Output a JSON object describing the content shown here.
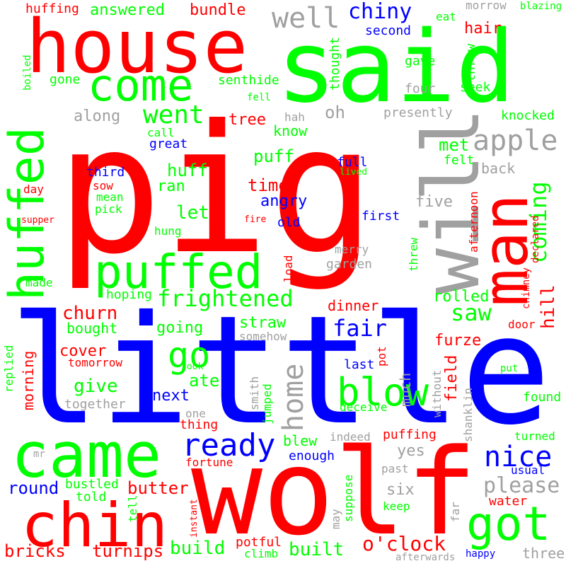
{
  "colors": {
    "red": "#ff0000",
    "green": "#00ff00",
    "blue": "#0000ff",
    "gray": "#a0a0a0",
    "background": "#ffffff"
  },
  "words": [
    {
      "text": "pig",
      "color": "red",
      "vertical": false
    },
    {
      "text": "little",
      "color": "blue",
      "vertical": false
    },
    {
      "text": "wolf",
      "color": "red",
      "vertical": false
    },
    {
      "text": "said",
      "color": "green",
      "vertical": false
    },
    {
      "text": "house",
      "color": "red",
      "vertical": false
    },
    {
      "text": "will",
      "color": "gray",
      "vertical": true
    },
    {
      "text": "man",
      "color": "red",
      "vertical": true
    },
    {
      "text": "came",
      "color": "green",
      "vertical": false
    },
    {
      "text": "chin",
      "color": "red",
      "vertical": false
    },
    {
      "text": "huffed",
      "color": "green",
      "vertical": true
    },
    {
      "text": "puffed",
      "color": "green",
      "vertical": false
    },
    {
      "text": "got",
      "color": "green",
      "vertical": false
    },
    {
      "text": "come",
      "color": "green",
      "vertical": false
    },
    {
      "text": "blow",
      "color": "green",
      "vertical": false
    },
    {
      "text": "go",
      "color": "green",
      "vertical": false
    },
    {
      "text": "home",
      "color": "gray",
      "vertical": true
    },
    {
      "text": "ready",
      "color": "blue",
      "vertical": false
    },
    {
      "text": "nice",
      "color": "blue",
      "vertical": false
    },
    {
      "text": "well",
      "color": "gray",
      "vertical": false
    },
    {
      "text": "apple",
      "color": "gray",
      "vertical": false
    },
    {
      "text": "went",
      "color": "green",
      "vertical": false
    },
    {
      "text": "frightened",
      "color": "green",
      "vertical": false
    },
    {
      "text": "coming",
      "color": "green",
      "vertical": true
    },
    {
      "text": "fair",
      "color": "blue",
      "vertical": false
    },
    {
      "text": "saw",
      "color": "green",
      "vertical": false
    },
    {
      "text": "please",
      "color": "gray",
      "vertical": false
    },
    {
      "text": "o'clock",
      "color": "red",
      "vertical": false
    },
    {
      "text": "chiny",
      "color": "blue",
      "vertical": false
    },
    {
      "text": "hill",
      "color": "red",
      "vertical": true
    },
    {
      "text": "build",
      "color": "green",
      "vertical": false
    },
    {
      "text": "built",
      "color": "green",
      "vertical": false
    },
    {
      "text": "bricks",
      "color": "red",
      "vertical": false
    },
    {
      "text": "turnips",
      "color": "red",
      "vertical": false
    },
    {
      "text": "butter",
      "color": "red",
      "vertical": false
    },
    {
      "text": "give",
      "color": "green",
      "vertical": false
    },
    {
      "text": "churn",
      "color": "red",
      "vertical": false
    },
    {
      "text": "round",
      "color": "blue",
      "vertical": false
    },
    {
      "text": "answered",
      "color": "green",
      "vertical": false
    },
    {
      "text": "bundle",
      "color": "red",
      "vertical": false
    },
    {
      "text": "huffing",
      "color": "red",
      "vertical": false
    },
    {
      "text": "hair",
      "color": "red",
      "vertical": false
    },
    {
      "text": "second",
      "color": "blue",
      "vertical": false
    },
    {
      "text": "eat",
      "color": "green",
      "vertical": false
    },
    {
      "text": "morrow",
      "color": "gray",
      "vertical": false
    },
    {
      "text": "blazing",
      "color": "green",
      "vertical": false
    },
    {
      "text": "gave",
      "color": "green",
      "vertical": false
    },
    {
      "text": "throw",
      "color": "green",
      "vertical": true
    },
    {
      "text": "seek",
      "color": "green",
      "vertical": false
    },
    {
      "text": "four",
      "color": "gray",
      "vertical": false
    },
    {
      "text": "boiled",
      "color": "green",
      "vertical": true
    },
    {
      "text": "gone",
      "color": "green",
      "vertical": false
    },
    {
      "text": "senthide",
      "color": "green",
      "vertical": false
    },
    {
      "text": "fell",
      "color": "green",
      "vertical": false
    },
    {
      "text": "thought",
      "color": "green",
      "vertical": true
    },
    {
      "text": "along",
      "color": "gray",
      "vertical": false
    },
    {
      "text": "oh",
      "color": "gray",
      "vertical": false
    },
    {
      "text": "tree",
      "color": "red",
      "vertical": false
    },
    {
      "text": "hah",
      "color": "gray",
      "vertical": false
    },
    {
      "text": "presently",
      "color": "gray",
      "vertical": false
    },
    {
      "text": "knocked",
      "color": "green",
      "vertical": false
    },
    {
      "text": "know",
      "color": "green",
      "vertical": false
    },
    {
      "text": "call",
      "color": "green",
      "vertical": false
    },
    {
      "text": "great",
      "color": "blue",
      "vertical": false
    },
    {
      "text": "puff",
      "color": "green",
      "vertical": false
    },
    {
      "text": "met",
      "color": "green",
      "vertical": false
    },
    {
      "text": "felt",
      "color": "green",
      "vertical": false
    },
    {
      "text": "back",
      "color": "gray",
      "vertical": false
    },
    {
      "text": "third",
      "color": "blue",
      "vertical": false
    },
    {
      "text": "huff",
      "color": "green",
      "vertical": false
    },
    {
      "text": "full",
      "color": "blue",
      "vertical": false
    },
    {
      "text": "lived",
      "color": "green",
      "vertical": false
    },
    {
      "text": "sow",
      "color": "red",
      "vertical": false
    },
    {
      "text": "mean",
      "color": "green",
      "vertical": false
    },
    {
      "text": "ran",
      "color": "green",
      "vertical": false
    },
    {
      "text": "time",
      "color": "red",
      "vertical": false
    },
    {
      "text": "day",
      "color": "red",
      "vertical": false
    },
    {
      "text": "pick",
      "color": "green",
      "vertical": false
    },
    {
      "text": "five",
      "color": "gray",
      "vertical": false
    },
    {
      "text": "angry",
      "color": "blue",
      "vertical": false
    },
    {
      "text": "let",
      "color": "green",
      "vertical": false
    },
    {
      "text": "first",
      "color": "blue",
      "vertical": false
    },
    {
      "text": "supper",
      "color": "red",
      "vertical": false
    },
    {
      "text": "fire",
      "color": "red",
      "vertical": false
    },
    {
      "text": "old",
      "color": "blue",
      "vertical": false
    },
    {
      "text": "hung",
      "color": "green",
      "vertical": false
    },
    {
      "text": "afternoon",
      "color": "red",
      "vertical": true
    },
    {
      "text": "declared",
      "color": "red",
      "vertical": true
    },
    {
      "text": "threw",
      "color": "green",
      "vertical": true
    },
    {
      "text": "chimney",
      "color": "red",
      "vertical": true
    },
    {
      "text": "merry",
      "color": "gray",
      "vertical": false
    },
    {
      "text": "garden",
      "color": "gray",
      "vertical": false
    },
    {
      "text": "load",
      "color": "red",
      "vertical": true
    },
    {
      "text": "made",
      "color": "green",
      "vertical": false
    },
    {
      "text": "hoping",
      "color": "green",
      "vertical": false
    },
    {
      "text": "rolled",
      "color": "green",
      "vertical": false
    },
    {
      "text": "dinner",
      "color": "red",
      "vertical": false
    },
    {
      "text": "bought",
      "color": "green",
      "vertical": false
    },
    {
      "text": "going",
      "color": "green",
      "vertical": false
    },
    {
      "text": "straw",
      "color": "green",
      "vertical": false
    },
    {
      "text": "somehow",
      "color": "gray",
      "vertical": false
    },
    {
      "text": "much",
      "color": "gray",
      "vertical": true
    },
    {
      "text": "furze",
      "color": "red",
      "vertical": false
    },
    {
      "text": "door",
      "color": "red",
      "vertical": false
    },
    {
      "text": "replied",
      "color": "green",
      "vertical": true
    },
    {
      "text": "cover",
      "color": "red",
      "vertical": false
    },
    {
      "text": "tomorrow",
      "color": "red",
      "vertical": false
    },
    {
      "text": "took",
      "color": "green",
      "vertical": false
    },
    {
      "text": "pot",
      "color": "red",
      "vertical": true
    },
    {
      "text": "last",
      "color": "blue",
      "vertical": false
    },
    {
      "text": "field",
      "color": "red",
      "vertical": true
    },
    {
      "text": "put",
      "color": "green",
      "vertical": false
    },
    {
      "text": "morning",
      "color": "red",
      "vertical": true
    },
    {
      "text": "next",
      "color": "blue",
      "vertical": false
    },
    {
      "text": "ate",
      "color": "green",
      "vertical": false
    },
    {
      "text": "smith",
      "color": "gray",
      "vertical": true
    },
    {
      "text": "jumped",
      "color": "green",
      "vertical": true
    },
    {
      "text": "without",
      "color": "gray",
      "vertical": true
    },
    {
      "text": "found",
      "color": "green",
      "vertical": false
    },
    {
      "text": "together",
      "color": "gray",
      "vertical": false
    },
    {
      "text": "deceive",
      "color": "green",
      "vertical": false
    },
    {
      "text": "shanklin",
      "color": "gray",
      "vertical": true
    },
    {
      "text": "one",
      "color": "gray",
      "vertical": false
    },
    {
      "text": "thing",
      "color": "red",
      "vertical": false
    },
    {
      "text": "blew",
      "color": "green",
      "vertical": false
    },
    {
      "text": "indeed",
      "color": "gray",
      "vertical": false
    },
    {
      "text": "puffing",
      "color": "red",
      "vertical": false
    },
    {
      "text": "turned",
      "color": "green",
      "vertical": false
    },
    {
      "text": "mr",
      "color": "gray",
      "vertical": false
    },
    {
      "text": "enough",
      "color": "blue",
      "vertical": false
    },
    {
      "text": "yes",
      "color": "gray",
      "vertical": false
    },
    {
      "text": "fortune",
      "color": "red",
      "vertical": false
    },
    {
      "text": "usual",
      "color": "blue",
      "vertical": false
    },
    {
      "text": "past",
      "color": "gray",
      "vertical": false
    },
    {
      "text": "bustled",
      "color": "green",
      "vertical": false
    },
    {
      "text": "told",
      "color": "green",
      "vertical": false
    },
    {
      "text": "six",
      "color": "gray",
      "vertical": false
    },
    {
      "text": "suppose",
      "color": "green",
      "vertical": true
    },
    {
      "text": "water",
      "color": "red",
      "vertical": false
    },
    {
      "text": "keep",
      "color": "green",
      "vertical": false
    },
    {
      "text": "far",
      "color": "gray",
      "vertical": true
    },
    {
      "text": "tell",
      "color": "green",
      "vertical": true
    },
    {
      "text": "instant",
      "color": "red",
      "vertical": true
    },
    {
      "text": "may",
      "color": "gray",
      "vertical": true
    },
    {
      "text": "potful",
      "color": "red",
      "vertical": false
    },
    {
      "text": "climb",
      "color": "green",
      "vertical": false
    },
    {
      "text": "three",
      "color": "gray",
      "vertical": false
    },
    {
      "text": "happy",
      "color": "blue",
      "vertical": false
    },
    {
      "text": "afterwards",
      "color": "gray",
      "vertical": false
    }
  ]
}
